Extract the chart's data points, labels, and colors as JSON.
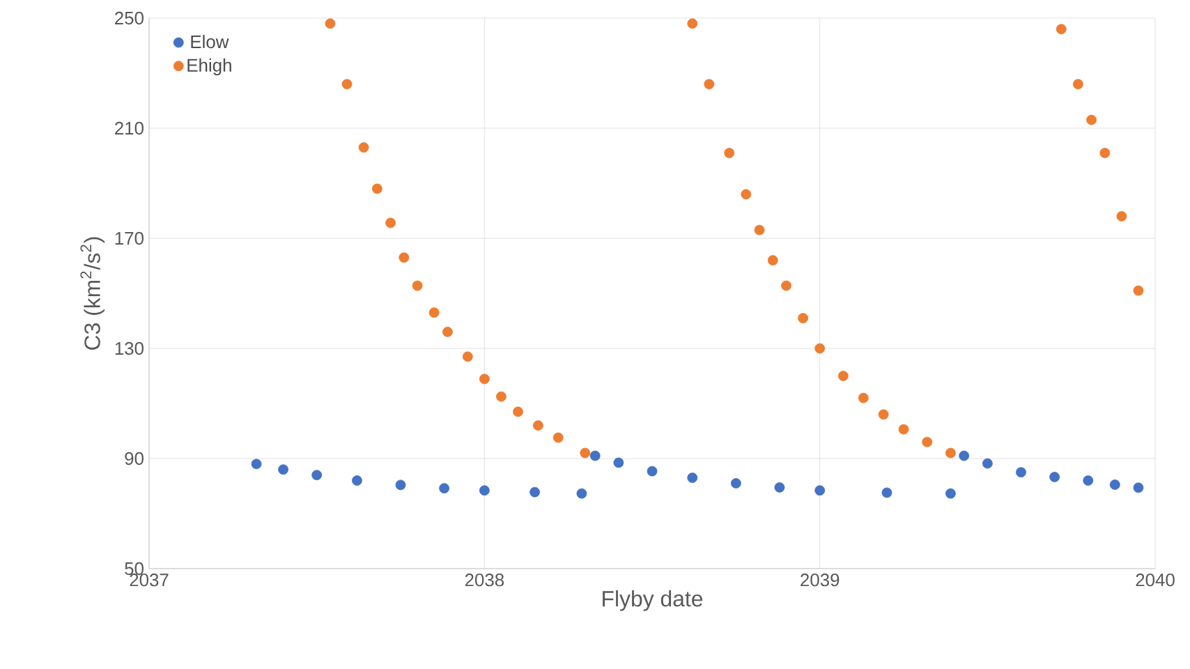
{
  "chart_data": {
    "type": "scatter",
    "xlabel": "Flyby date",
    "ylabel": "C3 (km$^{2}$/s$^{2}$)",
    "xlim": [
      2037,
      2040
    ],
    "xticks": [
      2037,
      2038,
      2039,
      2040
    ],
    "ylim": [
      50,
      250
    ],
    "yticks": [
      50,
      90,
      130,
      170,
      210,
      250
    ],
    "grid": true,
    "legend": "top left",
    "marker": "circle",
    "series": [
      {
        "name": "Elow",
        "color": "#4472c4",
        "x": [
          2037.32,
          2037.4,
          2037.5,
          2037.62,
          2037.75,
          2037.88,
          2038.0,
          2038.15,
          2038.29,
          null,
          2038.33,
          2038.4,
          2038.5,
          2038.62,
          2038.75,
          2038.88,
          2039.0,
          2039.2,
          2039.39,
          null,
          2039.43,
          2039.5,
          2039.6,
          2039.7,
          2039.8,
          2039.88,
          2039.95
        ],
        "values": [
          88,
          86,
          84,
          82,
          80.4,
          79.2,
          78.4,
          77.8,
          77.3,
          null,
          91,
          88.5,
          85.4,
          83,
          81,
          79.5,
          78.4,
          77.6,
          77.3,
          null,
          91,
          88.2,
          85,
          83.3,
          82,
          80.5,
          79.4
        ]
      },
      {
        "name": "Ehigh",
        "color": "#ed7d31",
        "x": [
          2037.54,
          2037.59,
          2037.64,
          2037.68,
          2037.72,
          2037.76,
          2037.8,
          2037.85,
          2037.89,
          2037.95,
          2038.0,
          2038.05,
          2038.1,
          2038.16,
          2038.22,
          2038.3,
          null,
          2038.62,
          2038.67,
          2038.73,
          2038.78,
          2038.82,
          2038.86,
          2038.9,
          2038.95,
          2039.0,
          2039.07,
          2039.13,
          2039.19,
          2039.25,
          2039.32,
          2039.39,
          null,
          2039.72,
          2039.77,
          2039.81,
          2039.85,
          2039.9,
          2039.95
        ],
        "values": [
          248,
          226,
          203,
          188,
          175.6,
          163,
          152.8,
          143,
          136,
          127,
          118.9,
          112.5,
          107,
          102,
          97.6,
          92,
          null,
          248,
          226,
          201,
          186,
          173,
          162,
          152.8,
          141,
          130,
          120,
          112,
          106,
          100.6,
          96,
          92,
          null,
          246,
          226,
          213,
          201,
          178,
          151
        ]
      }
    ]
  }
}
